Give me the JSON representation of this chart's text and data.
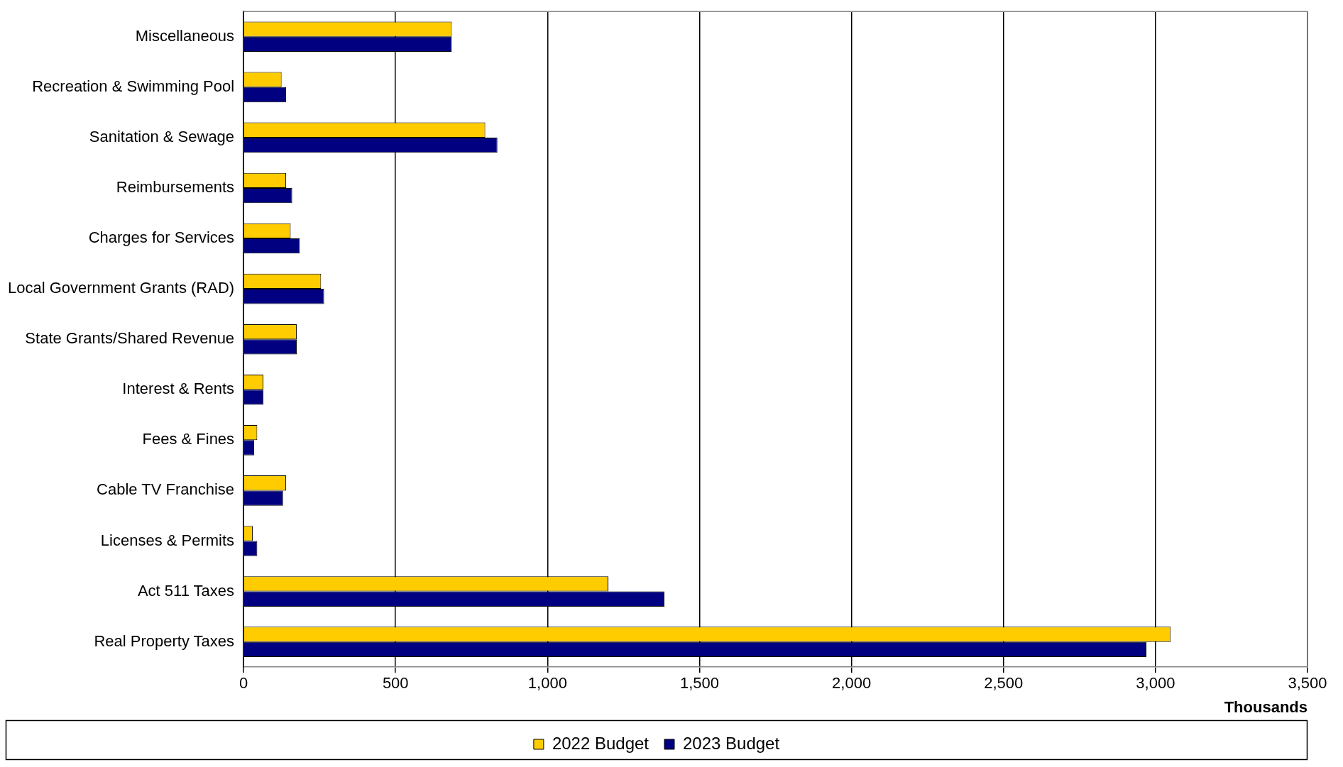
{
  "chart_data": {
    "type": "bar",
    "orientation": "horizontal",
    "xlabel": "Thousands",
    "categories": [
      "Miscellaneous",
      "Recreation & Swimming Pool",
      "Sanitation & Sewage",
      "Reimbursements",
      "Charges for Services",
      "Local Government Grants (RAD)",
      "State Grants/Shared Revenue",
      "Interest & Rents",
      "Fees & Fines",
      "Cable TV Franchise",
      "Licenses & Permits",
      "Act 511 Taxes",
      "Real Property Taxes"
    ],
    "series": [
      {
        "name": "2022 Budget",
        "color": "#ffcc00",
        "values": [
          685,
          125,
          795,
          140,
          155,
          255,
          175,
          65,
          45,
          140,
          30,
          1200,
          3050
        ]
      },
      {
        "name": "2023 Budget",
        "color": "#000080",
        "values": [
          685,
          140,
          835,
          160,
          185,
          265,
          175,
          65,
          35,
          130,
          45,
          1385,
          2970
        ]
      }
    ],
    "xlim": [
      0,
      3500
    ],
    "xticks": [
      0,
      {
        "value": 500,
        "label": "500"
      },
      {
        "value": 1000,
        "label": "1,000"
      },
      {
        "value": 1500,
        "label": "1,500"
      },
      {
        "value": 2000,
        "label": "2,000"
      },
      {
        "value": 2500,
        "label": "2,500"
      },
      {
        "value": 3000,
        "label": "3,000"
      },
      {
        "value": 3500,
        "label": "3,500"
      }
    ],
    "grid": "x",
    "legend": "bottom"
  }
}
